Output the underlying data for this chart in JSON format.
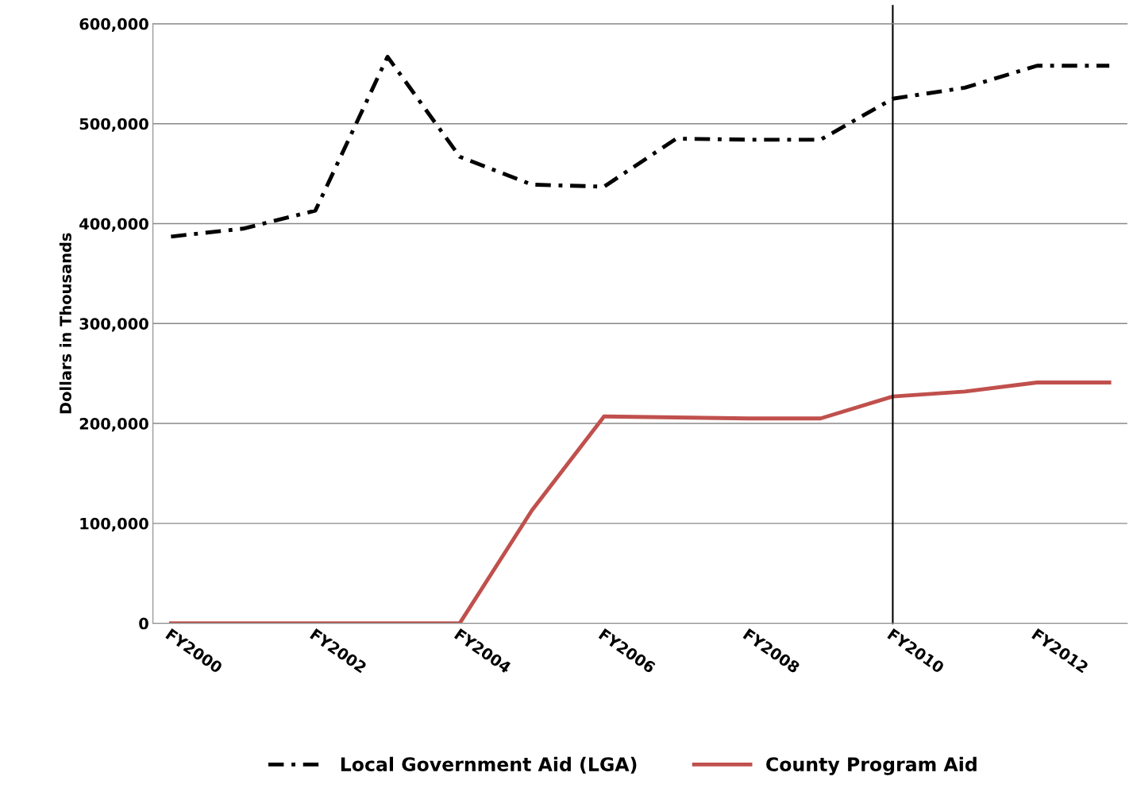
{
  "chart_data": {
    "type": "line",
    "ylabel": "Dollars in Thousands",
    "categories": [
      "FY2000",
      null,
      "FY2002",
      null,
      "FY2004",
      null,
      "FY2006",
      null,
      "FY2008",
      null,
      "FY2010",
      null,
      "FY2012",
      null
    ],
    "series": [
      {
        "name": "Local Government Aid (LGA)",
        "color": "#000000",
        "line_style": "dashdot",
        "values": [
          387000,
          395000,
          413000,
          567000,
          467000,
          439000,
          437000,
          485000,
          484000,
          484000,
          525000,
          536000,
          558000,
          558000
        ]
      },
      {
        "name": "County Program Aid",
        "color": "#c0504d",
        "line_style": "solid",
        "values": [
          0,
          0,
          0,
          0,
          0,
          113000,
          207000,
          206000,
          205000,
          205000,
          227000,
          232000,
          241000,
          241000
        ]
      }
    ],
    "ylim": [
      0,
      600000
    ],
    "yticks": [
      {
        "value": 0,
        "label": "0"
      },
      {
        "value": 100000,
        "label": "100,000"
      },
      {
        "value": 200000,
        "label": "200,000"
      },
      {
        "value": 300000,
        "label": "300,000"
      },
      {
        "value": 400000,
        "label": "400,000"
      },
      {
        "value": 500000,
        "label": "500,000"
      },
      {
        "value": 600000,
        "label": "600,000"
      }
    ],
    "ref_lines": [
      {
        "axis": "x",
        "value": "FY2010",
        "color": "#000000"
      }
    ],
    "grid": "y",
    "legend": "bottom",
    "marker": "none"
  }
}
